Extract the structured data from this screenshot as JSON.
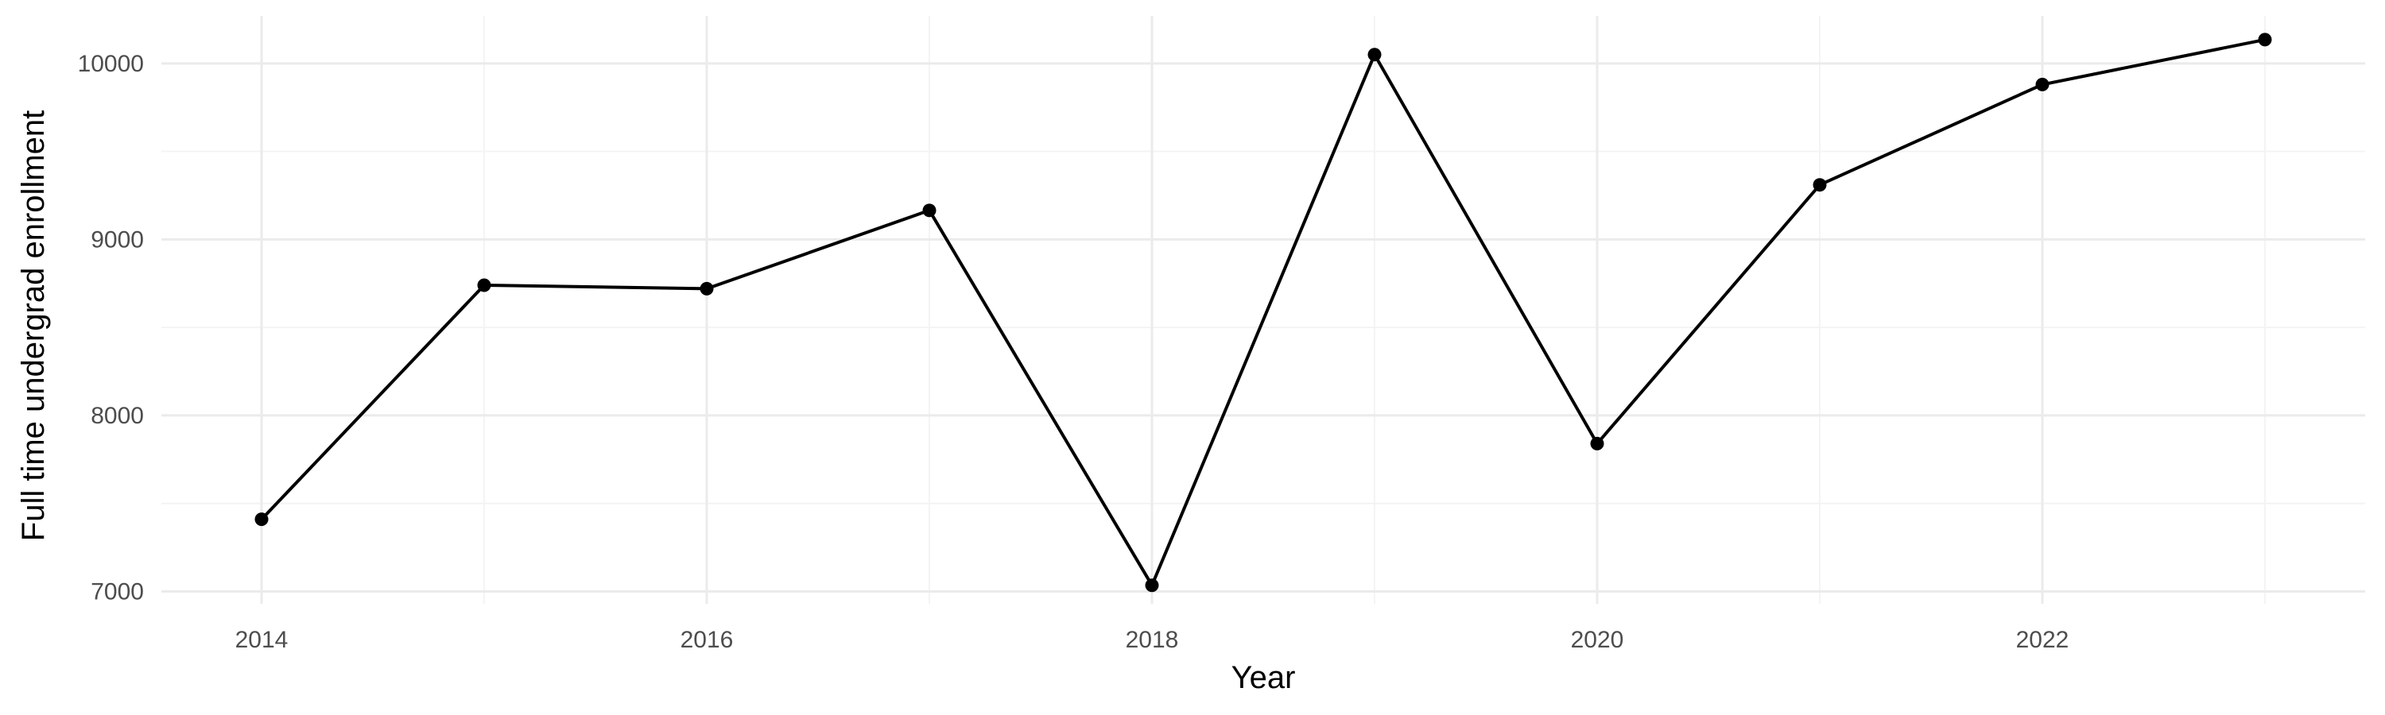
{
  "chart_data": {
    "type": "line",
    "xlabel": "Year",
    "ylabel": "Full time undergrad enrollment",
    "xlim": [
      2013.55,
      2023.45
    ],
    "ylim": [
      6930,
      10270
    ],
    "x_ticks": [
      2014,
      2016,
      2018,
      2020,
      2022
    ],
    "x_tick_labels": [
      "2014",
      "2016",
      "2018",
      "2020",
      "2022"
    ],
    "y_ticks": [
      7000,
      8000,
      9000,
      10000
    ],
    "y_tick_labels": [
      "7000",
      "8000",
      "9000",
      "10000"
    ],
    "grid": true,
    "legend": "none",
    "colors": {
      "line": "#000000",
      "point": "#000000",
      "grid_major": "#ebebeb",
      "grid_minor": "#f4f4f4"
    },
    "series": [
      {
        "x": [
          2014,
          2015,
          2016,
          2017,
          2018,
          2019,
          2020,
          2021,
          2022,
          2023
        ],
        "y": [
          7410,
          8740,
          8720,
          9165,
          7035,
          10050,
          7840,
          9310,
          9880,
          10135
        ]
      }
    ]
  }
}
